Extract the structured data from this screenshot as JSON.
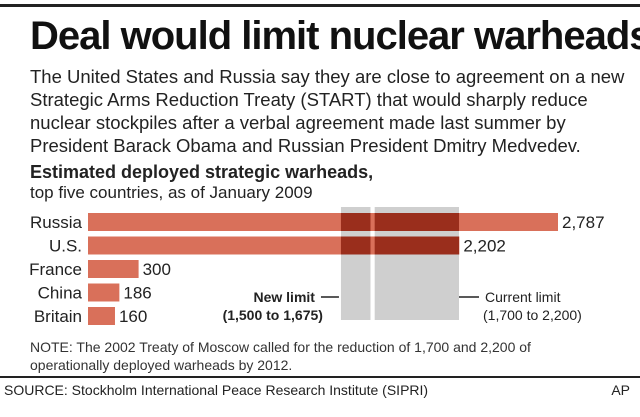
{
  "headline": "Deal would limit nuclear warheads",
  "intro": "The United States and Russia say they are close to agreement on a new Strategic Arms Reduction Treaty (START) that would sharply reduce nuclear stockpiles after a verbal agreement made last summer by President Barack Obama and Russian President Dmitry Medvedev.",
  "note": "NOTE: The 2002 Treaty of Moscow called for the reduction of 1,700 and 2,200 of operationally deployed warheads by 2012.",
  "source": "SOURCE: Stockholm International Peace Research Institute (SIPRI)",
  "credit": "AP",
  "colors": {
    "bar": "#d9705a",
    "bar_overlap": "#9a2e1c",
    "band": "#cfcfcf",
    "text": "#222222"
  },
  "chart_data": {
    "type": "bar",
    "orientation": "horizontal",
    "title": "Estimated deployed strategic warheads,",
    "subtitle": "top five countries, as of January 2009",
    "categories": [
      "Russia",
      "U.S.",
      "France",
      "China",
      "Britain"
    ],
    "values": [
      2787,
      2202,
      300,
      186,
      160
    ],
    "value_labels": [
      "2,787",
      "2,202",
      "300",
      "186",
      "160"
    ],
    "xlim": [
      0,
      2787
    ],
    "grid": false,
    "annotations": [
      {
        "name": "new-limit",
        "range": [
          1500,
          1675
        ],
        "label": "New limit",
        "range_label": "(1,500 to 1,675)"
      },
      {
        "name": "current-limit",
        "range": [
          1700,
          2200
        ],
        "label": "Current limit",
        "range_label": "(1,700 to 2,200)"
      }
    ]
  }
}
